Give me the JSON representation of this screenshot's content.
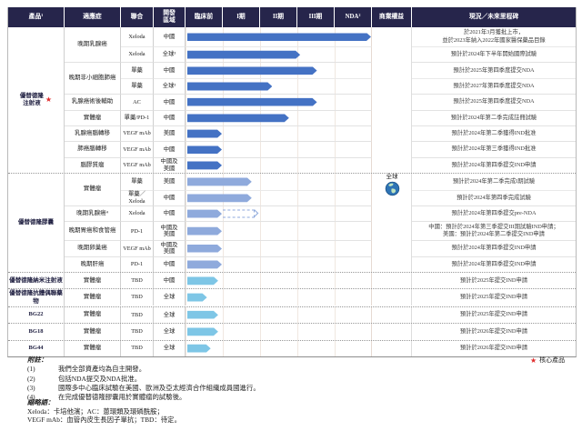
{
  "table": {
    "columns": [
      "產品¹",
      "適應症",
      "聯合",
      "開發\n區域",
      "臨床前",
      "I期",
      "II期",
      "III期",
      "NDA²",
      "商業權益",
      "現況／未來里程碑"
    ],
    "commercial_rights": {
      "label": "全球",
      "icon": "globe-icon"
    },
    "colors": {
      "header_bg": "#26254b",
      "group1_bar": "#4472C4",
      "group2_bar": "#8FAADC",
      "group3_bar": "#7EC6E6",
      "star_red": "#E02B2B"
    },
    "phase_scale_note": "bar_end units: 0=臨床前 start, 1=臨床前 end, 2=I期 end, 3=II期 end, 4=III期 end, 5=NDA end",
    "groups": [
      {
        "product": "優替德隆\n注射液",
        "core": true,
        "bar_color": "#4472C4",
        "blocks": [
          {
            "indication": "晚期乳腺癌",
            "rows": [
              {
                "combo": "Xeloda",
                "region": "中國",
                "bar_end": 5.0,
                "milestone": "於2021年3月獲批上市，",
                "milestone2": "並於2023年納入2022年國家醫保藥品目錄"
              },
              {
                "combo": "Xeloda",
                "region": "全球³",
                "bar_end": 3.1,
                "milestone": "預計於2024年下半年開始國際試驗"
              }
            ]
          },
          {
            "indication": "晚期非小細胞肺癌",
            "rows": [
              {
                "combo": "單藥",
                "region": "中國",
                "bar_end": 3.55,
                "milestone": "預計於2025年第四季度提交NDA"
              },
              {
                "combo": "單藥",
                "region": "全球³",
                "bar_end": 2.35,
                "milestone": "預計於2027年第四季度提交NDA"
              }
            ]
          },
          {
            "indication": "乳腺癌術後輔助",
            "rows": [
              {
                "combo": "AC",
                "region": "中國",
                "bar_end": 3.55,
                "milestone": "預計於2025年第四季度提交NDA"
              }
            ]
          },
          {
            "indication": "實體瘤",
            "rows": [
              {
                "combo": "單藥/PD-1",
                "region": "中國",
                "bar_end": 2.8,
                "milestone": "預計於2024年第二季完成註冊試驗"
              }
            ]
          },
          {
            "indication": "乳腺癌腦轉移",
            "rows": [
              {
                "combo": "VEGF mAb",
                "region": "美國",
                "bar_end": 1.0,
                "milestone": "預計於2024年第二季獲得IND批准"
              }
            ]
          },
          {
            "indication": "肺癌腦轉移",
            "rows": [
              {
                "combo": "VEGF mAb",
                "region": "中國",
                "bar_end": 1.0,
                "milestone": "預計於2024年第三季獲得IND批准"
              }
            ]
          },
          {
            "indication": "腦膠質瘤",
            "rows": [
              {
                "combo": "VEGF mAb",
                "region": "中國及\n美國",
                "bar_end": 1.0,
                "milestone": "預計於2024年第四季提交IND申請"
              }
            ]
          }
        ]
      },
      {
        "product": "優替德隆膠囊",
        "core": false,
        "bar_color": "#8FAADC",
        "blocks": [
          {
            "indication": "實體瘤",
            "rows": [
              {
                "combo": "單藥",
                "region": "美國",
                "bar_end": 1.8,
                "milestone": "預計於2024年第二季完成I期試驗"
              },
              {
                "combo": "單藥／\nXeloda",
                "region": "中國",
                "bar_end": 1.8,
                "milestone": "預計於2024年第四季完成試驗"
              }
            ]
          },
          {
            "indication": "晚期乳腺癌⁴",
            "rows": [
              {
                "combo": "Xeloda",
                "region": "中國",
                "bar_end": 1.0,
                "bar_dashed_end": 1.85,
                "milestone": "預計於2024年第四季提交pre-NDA"
              }
            ]
          },
          {
            "indication": "晚期胃癌和食管癌",
            "rows": [
              {
                "combo": "PD-1",
                "region": "中國及\n美國",
                "bar_end": 1.0,
                "milestone": "中國：預計於2024年第三季提交III期試驗IND申請；",
                "milestone2": "美國：預計於2024年第二季提交IND申請"
              }
            ]
          },
          {
            "indication": "晚期卵巢癌",
            "rows": [
              {
                "combo": "VEGF mAb",
                "region": "中國及\n美國",
                "bar_end": 1.0,
                "milestone": "預計於2024年第四季提交IND申請"
              }
            ]
          },
          {
            "indication": "晚期肝癌",
            "rows": [
              {
                "combo": "PD-1",
                "region": "中國",
                "bar_end": 1.0,
                "milestone": "預計於2024年第四季提交IND申請"
              }
            ]
          }
        ]
      },
      {
        "product": "優替德隆納米注射液",
        "core": false,
        "bar_color": "#7EC6E6",
        "blocks": [
          {
            "indication": "實體瘤",
            "rows": [
              {
                "combo": "TBD",
                "region": "中國",
                "bar_end": 0.9,
                "milestone": "預計於2025年提交IND申請"
              }
            ]
          }
        ]
      },
      {
        "product": "優替德隆抗體偶聯藥物",
        "core": false,
        "bar_color": "#7EC6E6",
        "blocks": [
          {
            "indication": "實體瘤",
            "rows": [
              {
                "combo": "TBD",
                "region": "全球",
                "bar_end": 0.6,
                "milestone": "預計於2025年提交IND申請"
              }
            ]
          }
        ]
      },
      {
        "product": "BG22",
        "core": false,
        "bar_color": "#7EC6E6",
        "blocks": [
          {
            "indication": "實體瘤",
            "rows": [
              {
                "combo": "TBD",
                "region": "全球",
                "bar_end": 0.9,
                "milestone": "預計於2025年提交IND申請"
              }
            ]
          }
        ]
      },
      {
        "product": "BG18",
        "core": false,
        "bar_color": "#7EC6E6",
        "blocks": [
          {
            "indication": "實體瘤",
            "rows": [
              {
                "combo": "TBD",
                "region": "全球",
                "bar_end": 0.9,
                "milestone": "預計於2026年提交IND申請"
              }
            ]
          }
        ]
      },
      {
        "product": "BG44",
        "core": false,
        "bar_color": "#7EC6E6",
        "blocks": [
          {
            "indication": "實體瘤",
            "rows": [
              {
                "combo": "TBD",
                "region": "全球",
                "bar_end": 0.7,
                "milestone": "預計於2026年提交IND申請"
              }
            ]
          }
        ]
      }
    ]
  },
  "legend": {
    "star": "★",
    "core_label": "核心產品"
  },
  "notes": {
    "title": "附註：",
    "items": [
      {
        "no": "(1)",
        "text": "我們全部資產均為自主開發。"
      },
      {
        "no": "(2)",
        "text": "包括NDA提交及NDA批准。"
      },
      {
        "no": "(3)",
        "text": "國際多中心臨床試驗在美國、歐洲及亞太經濟合作組織成員國進行。"
      },
      {
        "no": "(4)",
        "text": "在完成優替德隆膠囊用於實體瘤的試驗後。"
      }
    ]
  },
  "abbr": {
    "title": "縮略語：",
    "lines": [
      "Xeloda：卡培他濱；AC：蒽環類及環磷酰胺；",
      "VEGF mAb：血管內皮生長因子單抗；TBD：待定。"
    ]
  }
}
